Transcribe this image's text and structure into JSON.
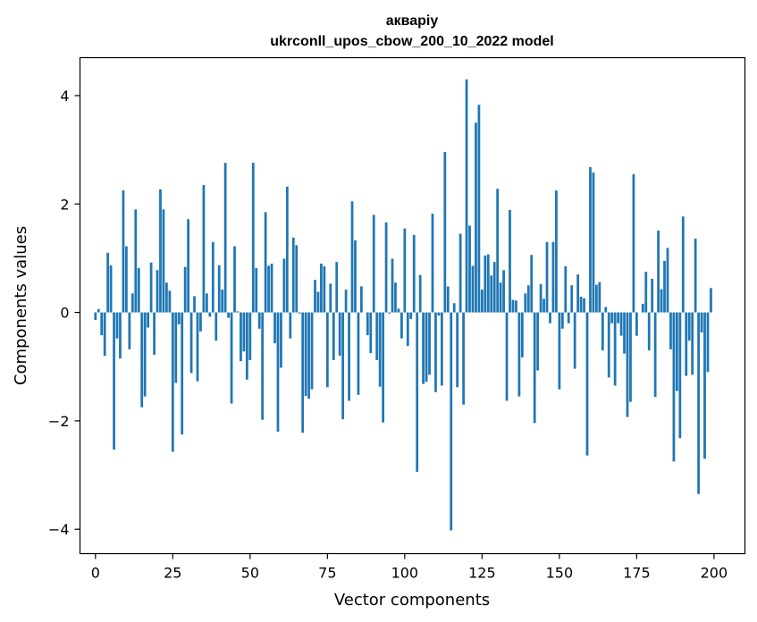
{
  "chart_data": {
    "type": "bar",
    "title": "акваріу",
    "subtitle": "ukrconll_upos_cbow_200_10_2022 model",
    "xlabel": "Vector components",
    "ylabel": "Components values",
    "xlim": [
      -5,
      210
    ],
    "ylim": [
      -4.45,
      4.7
    ],
    "x_ticks": [
      0,
      25,
      50,
      75,
      100,
      125,
      150,
      175,
      200
    ],
    "y_ticks": [
      -4,
      -2,
      0,
      2,
      4
    ],
    "x_tick_labels": [
      "0",
      "25",
      "50",
      "75",
      "100",
      "125",
      "150",
      "175",
      "200"
    ],
    "y_tick_labels": [
      "−4",
      "−2",
      "0",
      "2",
      "4"
    ],
    "bar_color": "#1f77b4",
    "grid": false,
    "values": [
      -0.14,
      0.06,
      -0.42,
      -0.8,
      1.1,
      0.87,
      -2.53,
      -0.48,
      -0.85,
      2.25,
      1.22,
      -0.68,
      0.35,
      1.9,
      0.82,
      -1.75,
      -1.55,
      -0.28,
      0.92,
      -0.78,
      0.78,
      2.27,
      1.9,
      0.55,
      0.4,
      -2.57,
      -1.3,
      -0.22,
      -2.25,
      0.84,
      1.72,
      -1.12,
      0.3,
      -1.27,
      -0.35,
      2.35,
      0.35,
      -0.08,
      1.3,
      -0.52,
      0.87,
      0.42,
      2.76,
      -0.1,
      -1.68,
      1.22,
      0.02,
      -0.9,
      -0.72,
      -1.24,
      -0.88,
      2.76,
      0.82,
      -0.3,
      -1.98,
      1.85,
      0.86,
      0.9,
      -0.57,
      -2.2,
      -1.02,
      0.99,
      2.32,
      -0.48,
      1.38,
      1.24,
      -0.02,
      -2.22,
      -1.54,
      -1.59,
      -1.42,
      0.6,
      0.38,
      0.9,
      0.85,
      -1.38,
      0.53,
      -0.88,
      0.93,
      -0.8,
      -1.97,
      0.42,
      -1.63,
      2.05,
      1.33,
      -1.52,
      0.48,
      0.0,
      -0.42,
      -0.75,
      1.8,
      -0.88,
      -1.37,
      -2.03,
      1.66,
      -0.02,
      0.99,
      0.55,
      0.07,
      -0.48,
      1.55,
      -0.62,
      -0.12,
      1.43,
      -2.94,
      0.69,
      -1.32,
      -1.28,
      -1.15,
      1.82,
      -1.47,
      -0.06,
      -1.35,
      2.96,
      0.48,
      -4.02,
      0.17,
      -1.38,
      1.45,
      -1.7,
      4.3,
      1.6,
      0.86,
      3.5,
      3.83,
      0.42,
      1.05,
      1.07,
      0.68,
      0.93,
      2.28,
      0.55,
      0.78,
      -1.63,
      1.89,
      0.23,
      0.22,
      -1.55,
      -0.83,
      0.35,
      0.5,
      1.06,
      -2.04,
      -1.07,
      0.52,
      0.25,
      1.3,
      -0.2,
      1.3,
      2.25,
      -1.42,
      -0.3,
      0.85,
      -0.2,
      0.5,
      -1.04,
      0.7,
      0.29,
      0.26,
      -2.64,
      2.68,
      2.58,
      0.51,
      0.56,
      -0.7,
      0.1,
      -1.2,
      -0.2,
      -1.35,
      -0.2,
      -0.43,
      -0.76,
      -1.93,
      -1.65,
      2.55,
      -0.43,
      0.0,
      0.16,
      0.75,
      -0.7,
      0.62,
      -1.56,
      1.51,
      0.43,
      0.95,
      1.19,
      -0.68,
      -2.75,
      -1.45,
      -2.32,
      1.77,
      -1.17,
      -0.52,
      -1.15,
      1.36,
      -3.35,
      -0.37,
      -2.7,
      -1.1,
      0.45
    ]
  }
}
